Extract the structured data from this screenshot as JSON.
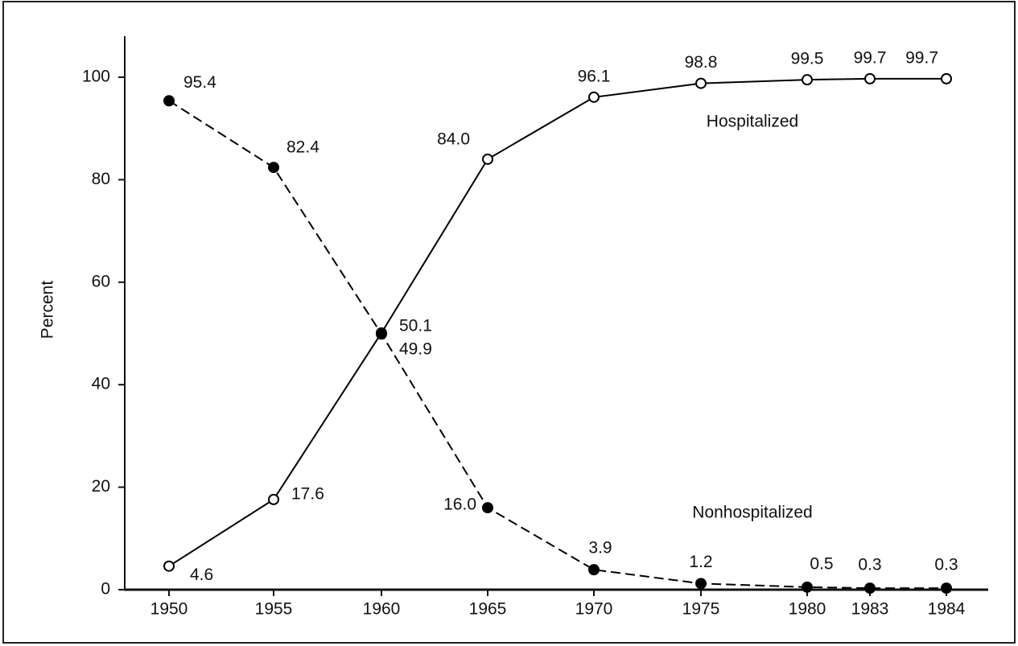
{
  "chart_data": {
    "type": "line",
    "y_label": "Percent",
    "categories": [
      "1950",
      "1955",
      "1960",
      "1965",
      "1970",
      "1975",
      "1980",
      "1983",
      "1984"
    ],
    "series": [
      {
        "name": "Hospitalized",
        "color": "#000000",
        "dashed": false,
        "marker": "open",
        "values": [
          4.6,
          17.6,
          50.1,
          84.0,
          96.1,
          98.8,
          99.5,
          99.7,
          99.7
        ],
        "value_labels": [
          "4.6",
          "17.6",
          "50.1",
          "84.0",
          "96.1",
          "98.8",
          "99.5",
          "99.7",
          "99.7"
        ]
      },
      {
        "name": "Nonhospitalized",
        "color": "#000000",
        "dashed": true,
        "marker": "filled",
        "values": [
          95.4,
          82.4,
          49.9,
          16.0,
          3.9,
          1.2,
          0.5,
          0.3,
          0.3
        ],
        "value_labels": [
          "95.4",
          "82.4",
          "49.9",
          "16.0",
          "3.9",
          "1.2",
          "0.5",
          "0.3",
          "0.3"
        ]
      }
    ],
    "ylim": [
      0,
      108
    ],
    "yticks": [
      0,
      20,
      40,
      60,
      80,
      100
    ],
    "grid": false
  }
}
